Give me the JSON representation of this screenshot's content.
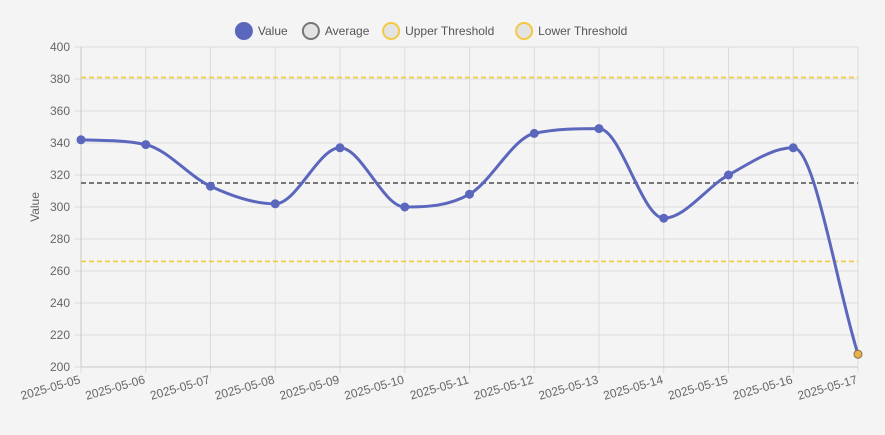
{
  "chart_data": {
    "type": "line",
    "title": "",
    "xlabel": "",
    "ylabel": "Value",
    "ylim": [
      200,
      400
    ],
    "yticks": [
      200,
      220,
      240,
      260,
      280,
      300,
      320,
      340,
      360,
      380,
      400
    ],
    "categories": [
      "2025-05-05",
      "2025-05-06",
      "2025-05-07",
      "2025-05-08",
      "2025-05-09",
      "2025-05-10",
      "2025-05-11",
      "2025-05-12",
      "2025-05-13",
      "2025-05-14",
      "2025-05-15",
      "2025-05-16",
      "2025-05-17"
    ],
    "grid": true,
    "legend_position": "top-center",
    "series": [
      {
        "name": "Value",
        "values": [
          342,
          339,
          313,
          302,
          337,
          300,
          308,
          346,
          349,
          293,
          320,
          337,
          208
        ],
        "color": "#5b67bd",
        "highlight_last_point_color": "#e8b24e"
      },
      {
        "name": "Average",
        "constant": 315,
        "color": "#777777",
        "dashed": true
      },
      {
        "name": "Upper Threshold",
        "constant": 381,
        "color": "#f5c842",
        "dashed": true
      },
      {
        "name": "Lower Threshold",
        "constant": 266,
        "color": "#f5c842",
        "dashed": true
      }
    ]
  }
}
